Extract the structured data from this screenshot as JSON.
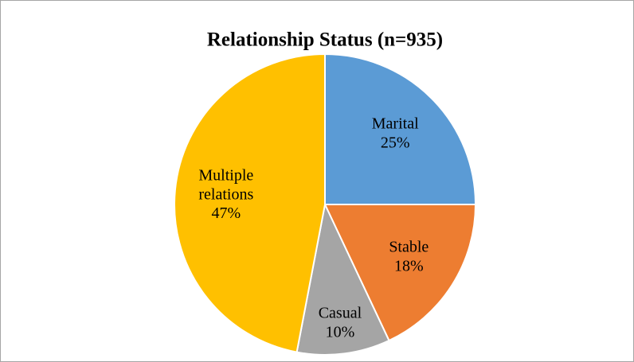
{
  "chart_data": {
    "type": "pie",
    "title": "Relationship Status (n=935)",
    "categories": [
      "Marital",
      "Stable",
      "Casual",
      "Multiple relations"
    ],
    "values": [
      25,
      18,
      10,
      47
    ],
    "value_labels": [
      "25%",
      "18%",
      "10%",
      "47%"
    ],
    "colors": [
      "#5b9bd5",
      "#ed7d31",
      "#a5a5a5",
      "#ffc000"
    ]
  }
}
